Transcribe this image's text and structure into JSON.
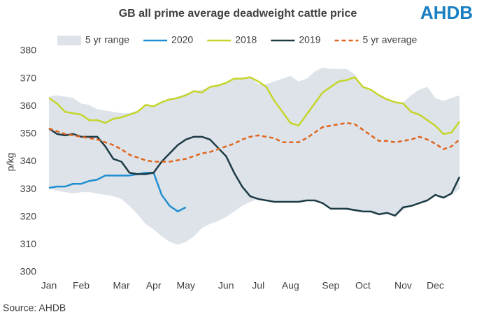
{
  "chart_data": {
    "type": "line",
    "title": "GB all prime average deadweight cattle price",
    "logo": "AHDB",
    "source": "Source: AHDB",
    "y_label": "p/kg",
    "ylim": [
      300,
      380
    ],
    "yticks": [
      300,
      310,
      320,
      330,
      340,
      350,
      360,
      370,
      380
    ],
    "grid": false,
    "categories": [
      "Jan",
      null,
      null,
      null,
      "Feb",
      null,
      null,
      null,
      null,
      "Mar",
      null,
      null,
      null,
      "Apr",
      null,
      null,
      null,
      "May",
      null,
      null,
      null,
      null,
      "Jun",
      null,
      null,
      null,
      "Jul",
      null,
      null,
      null,
      "Aug",
      null,
      null,
      null,
      null,
      "Sep",
      null,
      null,
      null,
      "Oct",
      null,
      null,
      null,
      null,
      "Nov",
      null,
      null,
      null,
      "Dec",
      null,
      null,
      null
    ],
    "series": [
      {
        "name": "5 yr range",
        "color": "#dde3e9",
        "kind": "range",
        "low": [
          330.5,
          329.5,
          329,
          328.5,
          329,
          329,
          328.5,
          328,
          327.5,
          326.5,
          324,
          321,
          317.5,
          315.5,
          313,
          311,
          310,
          311,
          313,
          316,
          317.5,
          318.5,
          320,
          322,
          324,
          325.5,
          326.5,
          326,
          325.5,
          325.5,
          325.5,
          325.5,
          326,
          326,
          325,
          323,
          323,
          322.5,
          322,
          322,
          321.5,
          320.5,
          321,
          320,
          322.5,
          324,
          325,
          326,
          327.5,
          326.5,
          328,
          330
        ],
        "high": [
          363.5,
          364,
          363.5,
          363,
          361,
          360.5,
          359,
          358.5,
          358,
          357.5,
          357.5,
          358.5,
          360.5,
          360,
          361.5,
          362.5,
          363.5,
          364.5,
          365.5,
          366,
          367,
          368,
          368.5,
          370,
          370,
          370.5,
          368,
          368,
          369,
          370,
          371,
          369,
          370,
          372.5,
          374,
          373.5,
          373.5,
          373.5,
          371.5,
          367,
          366,
          364,
          362.5,
          361.5,
          361.5,
          364,
          366,
          367,
          363,
          362,
          363,
          364
        ]
      },
      {
        "name": "2020",
        "color": "#1e8fd0",
        "values": [
          330.5,
          331,
          331,
          332,
          332,
          333,
          333.5,
          335,
          335,
          335,
          335,
          335.5,
          336,
          336,
          328,
          324,
          322,
          323.5,
          null,
          null,
          null,
          null,
          null,
          null,
          null,
          null,
          null,
          null,
          null,
          null,
          null,
          null,
          null,
          null,
          null,
          null,
          null,
          null,
          null,
          null,
          null,
          null,
          null,
          null,
          null,
          null,
          null,
          null,
          null,
          null,
          null,
          null
        ]
      },
      {
        "name": "2018",
        "color": "#c5d52b",
        "values": [
          363,
          361,
          358,
          357.5,
          357,
          355,
          355,
          354,
          355.5,
          356,
          357,
          358,
          360.5,
          360,
          361.5,
          362.5,
          363,
          364,
          365.5,
          365,
          367,
          367.5,
          368.5,
          370,
          370,
          370.5,
          369,
          367,
          362,
          358,
          354,
          353,
          357,
          361,
          365,
          367,
          369,
          369.5,
          370.5,
          367,
          366,
          364,
          362.5,
          361.5,
          361,
          358,
          357,
          355,
          353,
          350,
          350.5,
          354.5
        ]
      },
      {
        "name": "2019",
        "color": "#1d3b45",
        "values": [
          352,
          350,
          349.5,
          350,
          349,
          349,
          349,
          345.5,
          341,
          340,
          336,
          335.5,
          335.5,
          336,
          340,
          343,
          346,
          348,
          349,
          349,
          348,
          345,
          342,
          336,
          331,
          327.5,
          326.5,
          326,
          325.5,
          325.5,
          325.5,
          325.5,
          326,
          326,
          325,
          323,
          323,
          323,
          322.5,
          322,
          322,
          321,
          321.5,
          320.5,
          323.5,
          324,
          325,
          326,
          328,
          327,
          328.5,
          334.5
        ]
      },
      {
        "name": "5 yr average",
        "color": "#e0651e",
        "dash": true,
        "values": [
          352,
          351,
          350,
          349.5,
          349,
          348.5,
          348,
          347,
          346,
          344.5,
          342.5,
          341.5,
          340.5,
          340,
          340,
          340,
          340.5,
          341,
          342,
          343,
          343.5,
          344.5,
          345.5,
          346.5,
          348,
          349,
          349.5,
          349,
          348.5,
          347,
          347,
          347,
          348.5,
          350.5,
          352.5,
          353,
          353.5,
          354,
          353.5,
          351.5,
          349.5,
          347.5,
          347.5,
          347,
          347.5,
          348,
          349,
          348,
          346.5,
          344.5,
          345.5,
          348
        ]
      }
    ]
  }
}
